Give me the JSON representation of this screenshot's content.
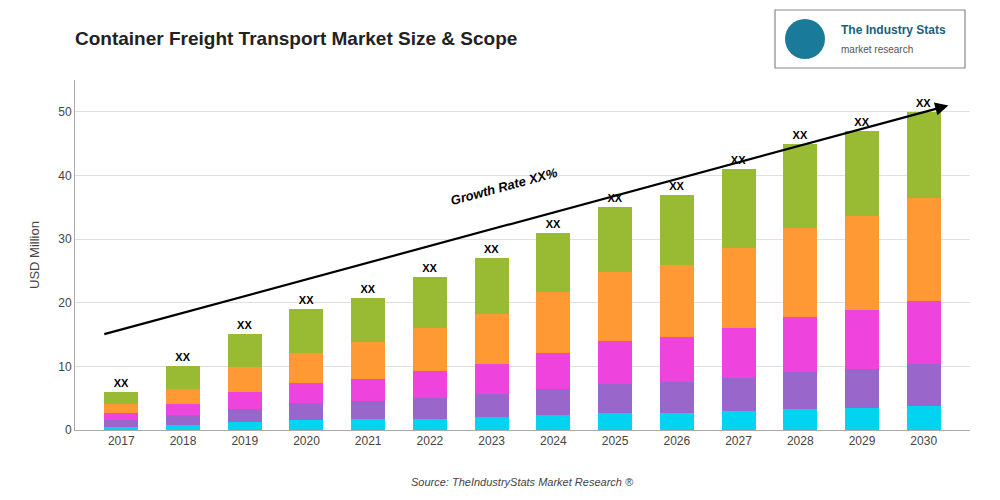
{
  "chart_data": {
    "type": "bar",
    "stacked": true,
    "title": "Container Freight Transport Market Size & Scope",
    "ylabel": "USD Million",
    "source": "Source: TheIndustryStats Market Research ®",
    "x": [
      2017,
      2018,
      2019,
      2020,
      2021,
      2022,
      2023,
      2024,
      2025,
      2026,
      2027,
      2028,
      2029,
      2030
    ],
    "series": [
      {
        "color": "#00D4F0",
        "values": [
          0.48,
          0.8,
          1.2,
          1.52,
          1.68,
          1.8,
          2.025,
          2.325,
          2.625,
          2.701,
          2.993,
          3.285,
          3.525,
          3.8
        ]
      },
      {
        "color": "#9966CC",
        "values": [
          1.02,
          1.5,
          2.1,
          2.66,
          2.94,
          3.24,
          3.591,
          4.092,
          4.55,
          4.81,
          5.248,
          5.76,
          6.016,
          6.5
        ]
      },
      {
        "color": "#EE44DD",
        "values": [
          1.2,
          1.8,
          2.625,
          3.23,
          3.465,
          4.2,
          4.725,
          5.735,
          6.755,
          7.104,
          7.79,
          8.775,
          9.306,
          10
        ]
      },
      {
        "color": "#FF9933",
        "values": [
          1.32,
          2.4,
          3.9,
          4.75,
          5.67,
          6.72,
          7.83,
          9.61,
          10.85,
          11.285,
          12.505,
          13.95,
          14.805,
          16.2
        ]
      },
      {
        "color": "#99BB33",
        "values": [
          1.98,
          3.5,
          5.325,
          6.84,
          7.035,
          8.04,
          8.829,
          9.238,
          10.22,
          11.1,
          12.464,
          13.23,
          13.348,
          13.5
        ],
        "value_labels": [
          "XX",
          "XX",
          "XX",
          "XX",
          "XX",
          "XX",
          "XX",
          "XX",
          "XX",
          "XX",
          "XX",
          "XX",
          "XX",
          "XX"
        ]
      }
    ],
    "xlim": [
      2016.25,
      2030.75
    ],
    "xticks": [
      2017,
      2018,
      2019,
      2020,
      2021,
      2022,
      2023,
      2024,
      2025,
      2026,
      2027,
      2028,
      2029,
      2030
    ],
    "ylim": [
      0,
      55
    ],
    "yticks": [
      0,
      10,
      20,
      30,
      40,
      50
    ],
    "grid": true,
    "annotations": [
      {
        "text": "Growth Rate XX%",
        "x": 2023.2,
        "y": 34.5
      }
    ],
    "arrows": [
      {
        "x_start": 2016.7,
        "y_start": 15,
        "x_end": 2030.4,
        "y_end": 51
      }
    ],
    "logo": {
      "title": "The Industry Stats",
      "subtitle": "market research"
    }
  }
}
